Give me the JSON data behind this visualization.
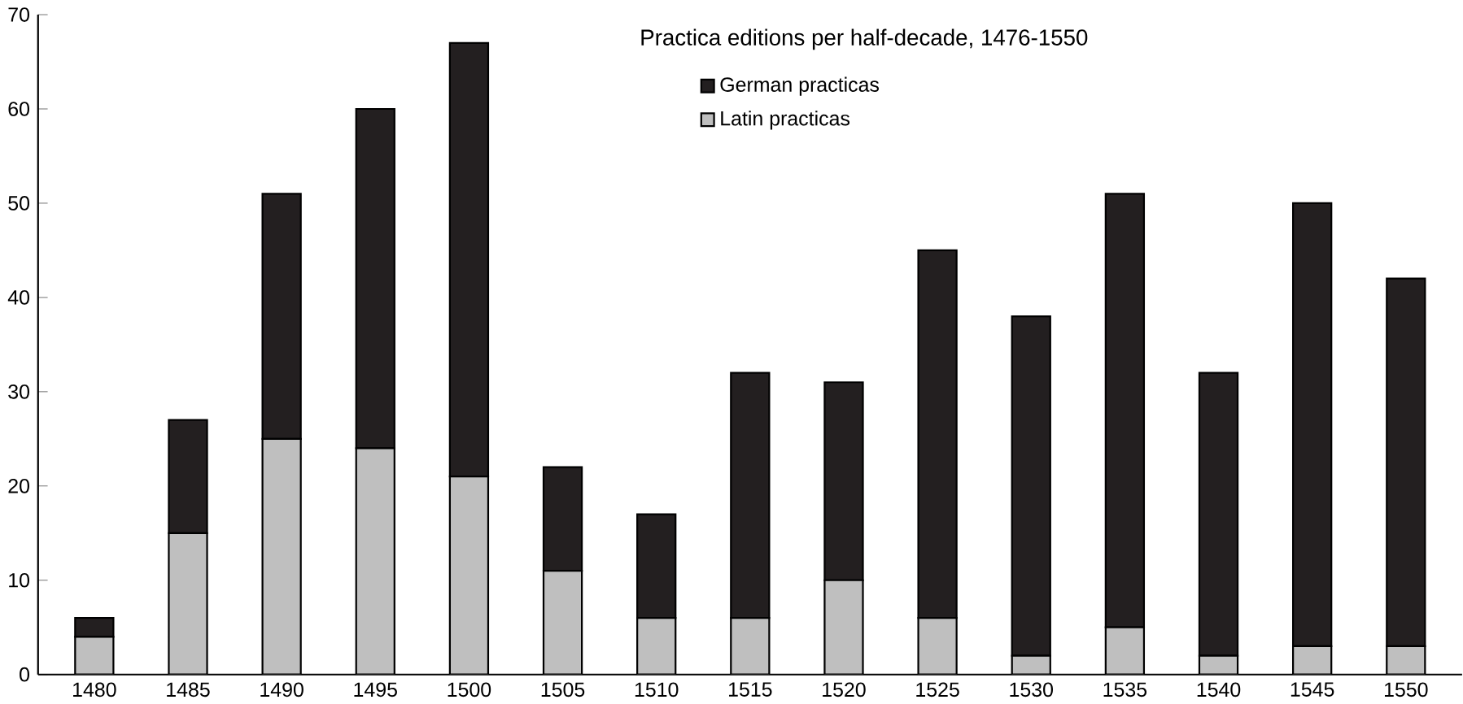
{
  "chart_data": {
    "type": "bar",
    "stacked": true,
    "title": "Practica editions per half-decade, 1476-1550",
    "categories": [
      "1480",
      "1485",
      "1490",
      "1495",
      "1500",
      "1505",
      "1510",
      "1515",
      "1520",
      "1525",
      "1530",
      "1535",
      "1540",
      "1545",
      "1550"
    ],
    "series": [
      {
        "name": "Latin practicas",
        "color": "#bfbfbf",
        "values": [
          4,
          15,
          25,
          24,
          21,
          11,
          6,
          6,
          10,
          6,
          2,
          5,
          2,
          3,
          3
        ]
      },
      {
        "name": "German practicas",
        "color": "#231f20",
        "values": [
          2,
          12,
          26,
          36,
          46,
          11,
          11,
          26,
          21,
          39,
          36,
          46,
          30,
          47,
          39
        ]
      }
    ],
    "ylim": [
      0,
      70
    ],
    "yticks": [
      0,
      10,
      20,
      30,
      40,
      50,
      60,
      70
    ],
    "grid": false,
    "legend": "top"
  }
}
